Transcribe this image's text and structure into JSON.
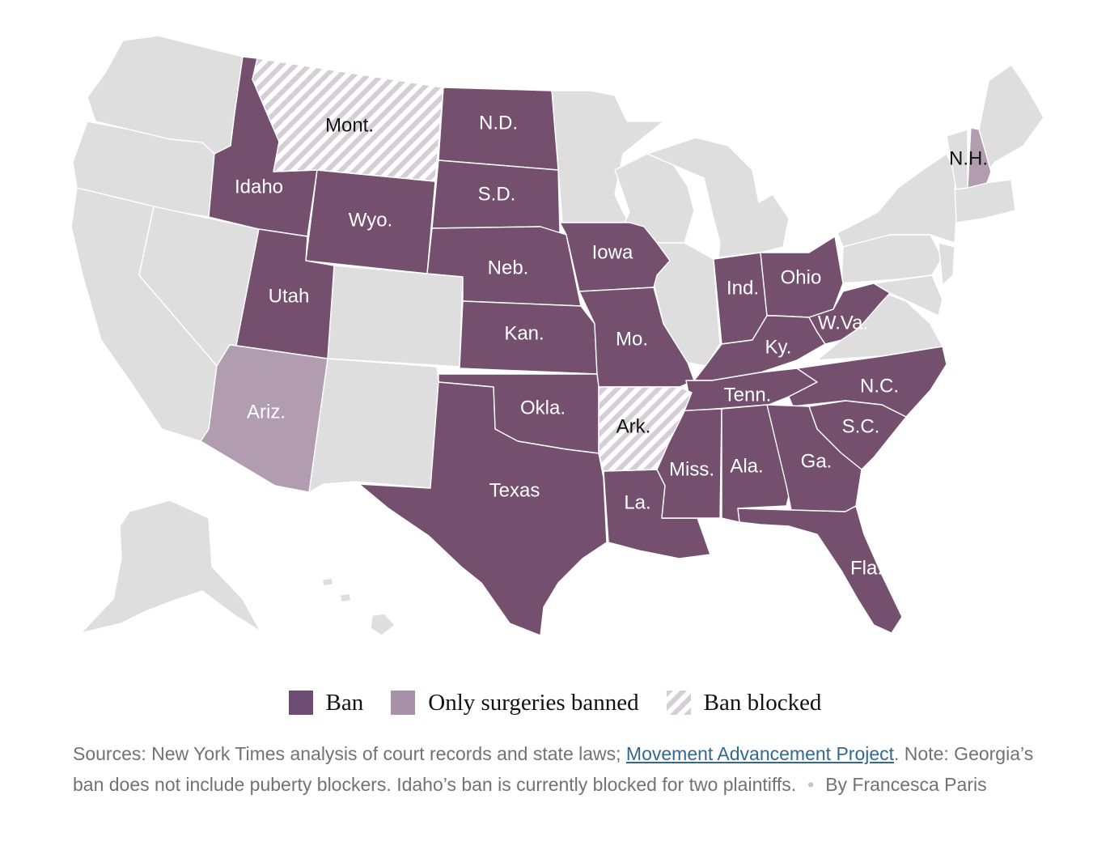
{
  "map": {
    "colors": {
      "ban": "#754f6e",
      "only_surgeries_banned": "#b19cb0",
      "ban_blocked_stripe": "#d6ced6",
      "no_ban": "#dedede"
    },
    "state_labels": [
      {
        "key": "mont",
        "text": "Mont.",
        "category": "ban_blocked"
      },
      {
        "key": "nd",
        "text": "N.D.",
        "category": "ban"
      },
      {
        "key": "sd",
        "text": "S.D.",
        "category": "ban"
      },
      {
        "key": "idaho",
        "text": "Idaho",
        "category": "ban"
      },
      {
        "key": "wyo",
        "text": "Wyo.",
        "category": "ban"
      },
      {
        "key": "neb",
        "text": "Neb.",
        "category": "ban"
      },
      {
        "key": "iowa",
        "text": "Iowa",
        "category": "ban"
      },
      {
        "key": "utah",
        "text": "Utah",
        "category": "ban"
      },
      {
        "key": "kan",
        "text": "Kan.",
        "category": "ban"
      },
      {
        "key": "mo",
        "text": "Mo.",
        "category": "ban"
      },
      {
        "key": "ind",
        "text": "Ind.",
        "category": "ban"
      },
      {
        "key": "ohio",
        "text": "Ohio",
        "category": "ban"
      },
      {
        "key": "ky",
        "text": "Ky.",
        "category": "ban"
      },
      {
        "key": "wva",
        "text": "W.Va.",
        "category": "ban"
      },
      {
        "key": "ariz",
        "text": "Ariz.",
        "category": "only_surgeries_banned"
      },
      {
        "key": "okla",
        "text": "Okla.",
        "category": "ban"
      },
      {
        "key": "ark",
        "text": "Ark.",
        "category": "ban_blocked"
      },
      {
        "key": "tenn",
        "text": "Tenn.",
        "category": "ban"
      },
      {
        "key": "nc",
        "text": "N.C.",
        "category": "ban"
      },
      {
        "key": "sc",
        "text": "S.C.",
        "category": "ban"
      },
      {
        "key": "texas",
        "text": "Texas",
        "category": "ban"
      },
      {
        "key": "miss",
        "text": "Miss.",
        "category": "ban"
      },
      {
        "key": "ala",
        "text": "Ala.",
        "category": "ban"
      },
      {
        "key": "ga",
        "text": "Ga.",
        "category": "ban"
      },
      {
        "key": "la",
        "text": "La.",
        "category": "ban"
      },
      {
        "key": "fla",
        "text": "Fla.",
        "category": "ban"
      },
      {
        "key": "nh",
        "text": "N.H.",
        "category": "only_surgeries_banned"
      }
    ]
  },
  "legend": {
    "ban": "Ban",
    "only_surgeries_banned": "Only surgeries banned",
    "ban_blocked": "Ban blocked"
  },
  "source_note": {
    "prefix": "Sources: New York Times analysis of court records and state laws; ",
    "link_text": "Movement Advancement Project",
    "suffix": ". Note: Georgia’s ban does not include puberty blockers. Idaho’s ban is currently blocked for two plaintiffs.",
    "byline": "By Francesca Paris"
  }
}
